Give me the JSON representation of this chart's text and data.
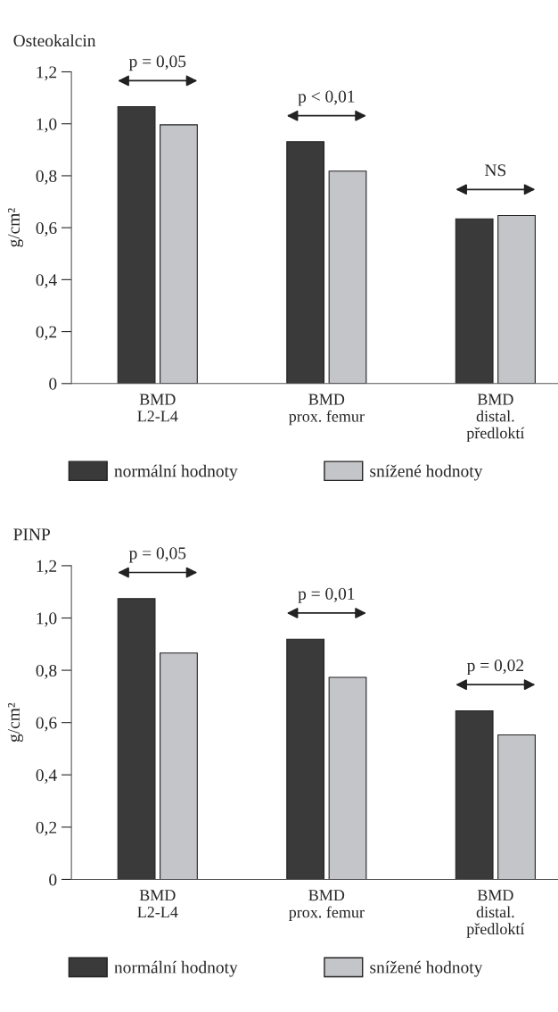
{
  "chart_data": [
    {
      "type": "bar",
      "title": "Osteokalcin",
      "ylabel": "g/cm²",
      "categories": [
        "BMD\nL2-L4",
        "BMD\nprox. femur",
        "BMD\ndistal.\npředloktí"
      ],
      "series": [
        {
          "name": "normální hodnoty",
          "color": "#3a3a3a",
          "values": [
            1.066,
            0.931,
            0.634
          ]
        },
        {
          "name": "snížené hodnoty",
          "color": "#c4c5c8",
          "values": [
            0.996,
            0.818,
            0.647
          ]
        }
      ],
      "ylim": [
        0,
        1.2
      ],
      "yticks": [
        0,
        {
          "value": 0.2,
          "label": "0,2"
        },
        {
          "value": 0.4,
          "label": "0,4"
        },
        {
          "value": 0.6,
          "label": "0,6"
        },
        {
          "value": 0.8,
          "label": "0,8"
        },
        {
          "value": 1.0,
          "label": "1,0"
        },
        {
          "value": 1.2,
          "label": "1,2"
        }
      ],
      "annotations": [
        "p = 0,05",
        "p < 0,01",
        "NS"
      ],
      "legend": "bottom"
    },
    {
      "type": "bar",
      "title": "PINP",
      "ylabel": "g/cm²",
      "categories": [
        "BMD\nL2-L4",
        "BMD\nprox. femur",
        "BMD\ndistal.\npředloktí"
      ],
      "series": [
        {
          "name": "normální hodnoty",
          "color": "#3a3a3a",
          "values": [
            1.074,
            0.919,
            0.645
          ]
        },
        {
          "name": "snížené hodnoty",
          "color": "#c4c5c8",
          "values": [
            0.866,
            0.773,
            0.553
          ]
        }
      ],
      "ylim": [
        0,
        1.2
      ],
      "yticks": [
        0,
        {
          "value": 0.2,
          "label": "0,2"
        },
        {
          "value": 0.4,
          "label": "0,4"
        },
        {
          "value": 0.6,
          "label": "0,6"
        },
        {
          "value": 0.8,
          "label": "0,8"
        },
        {
          "value": 1.0,
          "label": "1,0"
        },
        {
          "value": 1.2,
          "label": "1,2"
        }
      ],
      "annotations": [
        "p = 0,05",
        "p = 0,01",
        "p = 0,02"
      ],
      "legend": "bottom"
    }
  ]
}
